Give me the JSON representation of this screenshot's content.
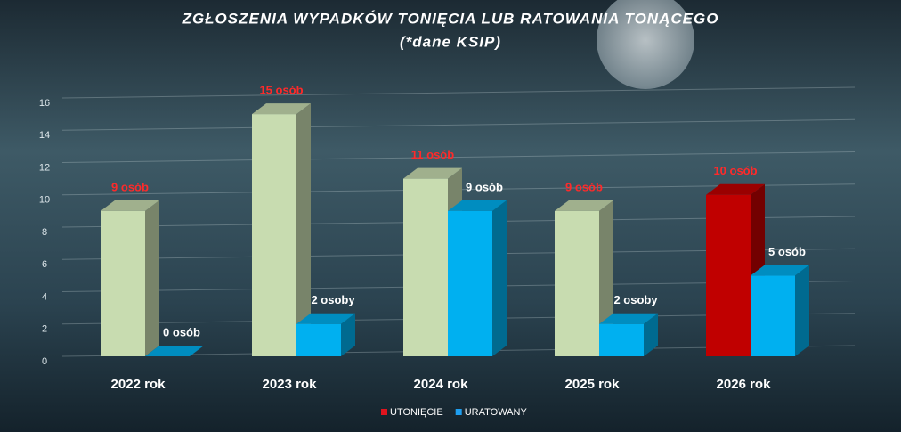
{
  "chart_data": {
    "type": "bar3d",
    "title": "ZGŁOSZENIA WYPADKÓW TONIĘCIA LUB RATOWANIA TONĄCEGO",
    "subtitle": "(*dane KSIP)",
    "categories": [
      "2022 rok",
      "2023 rok",
      "2024 rok",
      "2025 rok",
      "2026 rok"
    ],
    "series": [
      {
        "name": "UTONIĘCIE",
        "color": "#e0141e",
        "bar_colors": [
          "#c8dcb0",
          "#c8dcb0",
          "#c8dcb0",
          "#c8dcb0",
          "#c00000"
        ],
        "label_color": "#ff2a2a",
        "values": [
          9,
          15,
          11,
          9,
          10
        ],
        "value_labels": [
          "9 osób",
          "15 osób",
          "11 osób",
          "9 osób",
          "10 osób"
        ]
      },
      {
        "name": "URATOWANY",
        "color": "#1e9ff0",
        "bar_colors": [
          "#00b0f0",
          "#00b0f0",
          "#00b0f0",
          "#00b0f0",
          "#00b0f0"
        ],
        "label_color": "#ffffff",
        "values": [
          0,
          2,
          9,
          2,
          5
        ],
        "value_labels": [
          "0 osób",
          "2 osoby",
          "9 osób",
          "2 osoby",
          "5 osób"
        ]
      }
    ],
    "ylim": [
      0,
      16
    ],
    "yticks": [
      0,
      2,
      4,
      6,
      8,
      10,
      12,
      14,
      16
    ],
    "grid": true,
    "legend": "bottom"
  }
}
